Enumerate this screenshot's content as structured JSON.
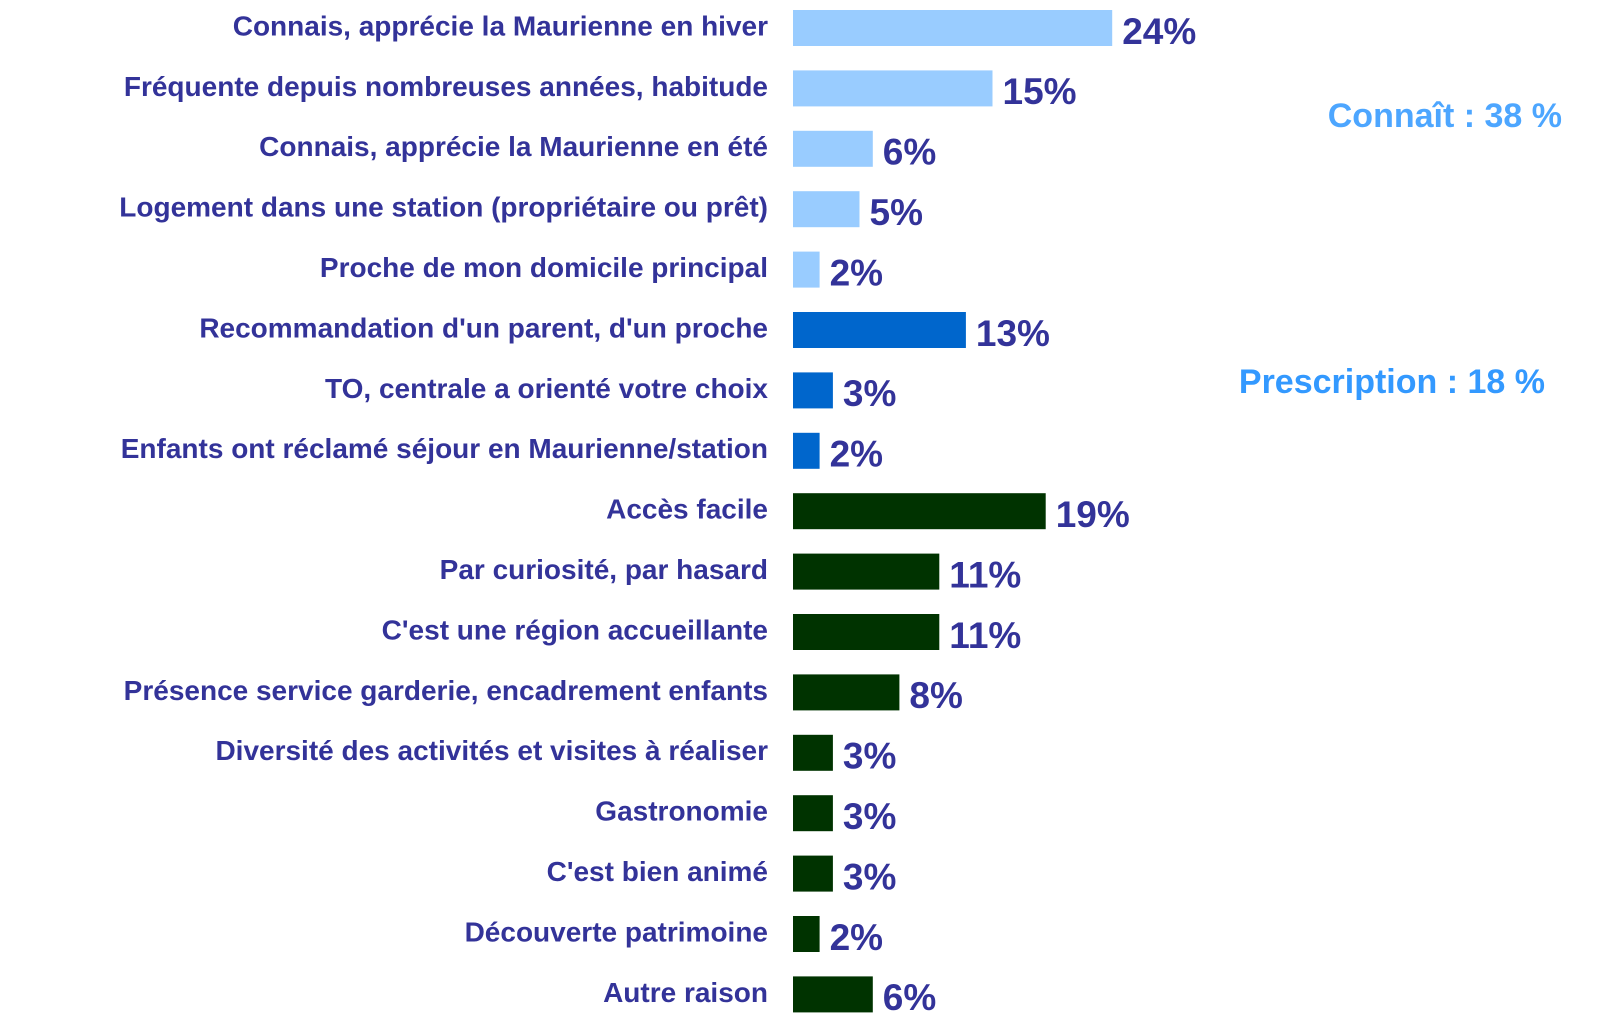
{
  "chart_data": {
    "type": "bar",
    "categories": [
      "Connais, apprécie la Maurienne en hiver",
      "Fréquente depuis nombreuses années, habitude",
      "Connais, apprécie la Maurienne en été",
      "Logement dans une station (propriétaire ou prêt)",
      "Proche de mon domicile principal",
      "Recommandation d'un parent, d'un proche",
      "TO, centrale a orienté votre choix",
      "Enfants ont réclamé séjour en Maurienne/station",
      "Accès facile",
      "Par curiosité, par hasard",
      "C'est une région accueillante",
      "Présence service garderie, encadrement enfants",
      "Diversité des activités et visites à réaliser",
      "Gastronomie",
      "C'est bien animé",
      "Découverte patrimoine",
      "Autre raison"
    ],
    "values": [
      24,
      15,
      6,
      5,
      2,
      13,
      3,
      2,
      19,
      11,
      11,
      8,
      3,
      3,
      3,
      2,
      6
    ],
    "value_labels": [
      "24%",
      "15%",
      "6%",
      "5%",
      "2%",
      "13%",
      "3%",
      "2%",
      "19%",
      "11%",
      "11%",
      "8%",
      "3%",
      "3%",
      "3%",
      "2%",
      "6%"
    ],
    "colors": [
      "#99ccff",
      "#99ccff",
      "#99ccff",
      "#99ccff",
      "#99ccff",
      "#0066cc",
      "#0066cc",
      "#0066cc",
      "#003300",
      "#003300",
      "#003300",
      "#003300",
      "#003300",
      "#003300",
      "#003300",
      "#003300",
      "#003300"
    ],
    "annotations": [
      "Connaît : 38 %",
      "Prescription : 18 %"
    ]
  }
}
